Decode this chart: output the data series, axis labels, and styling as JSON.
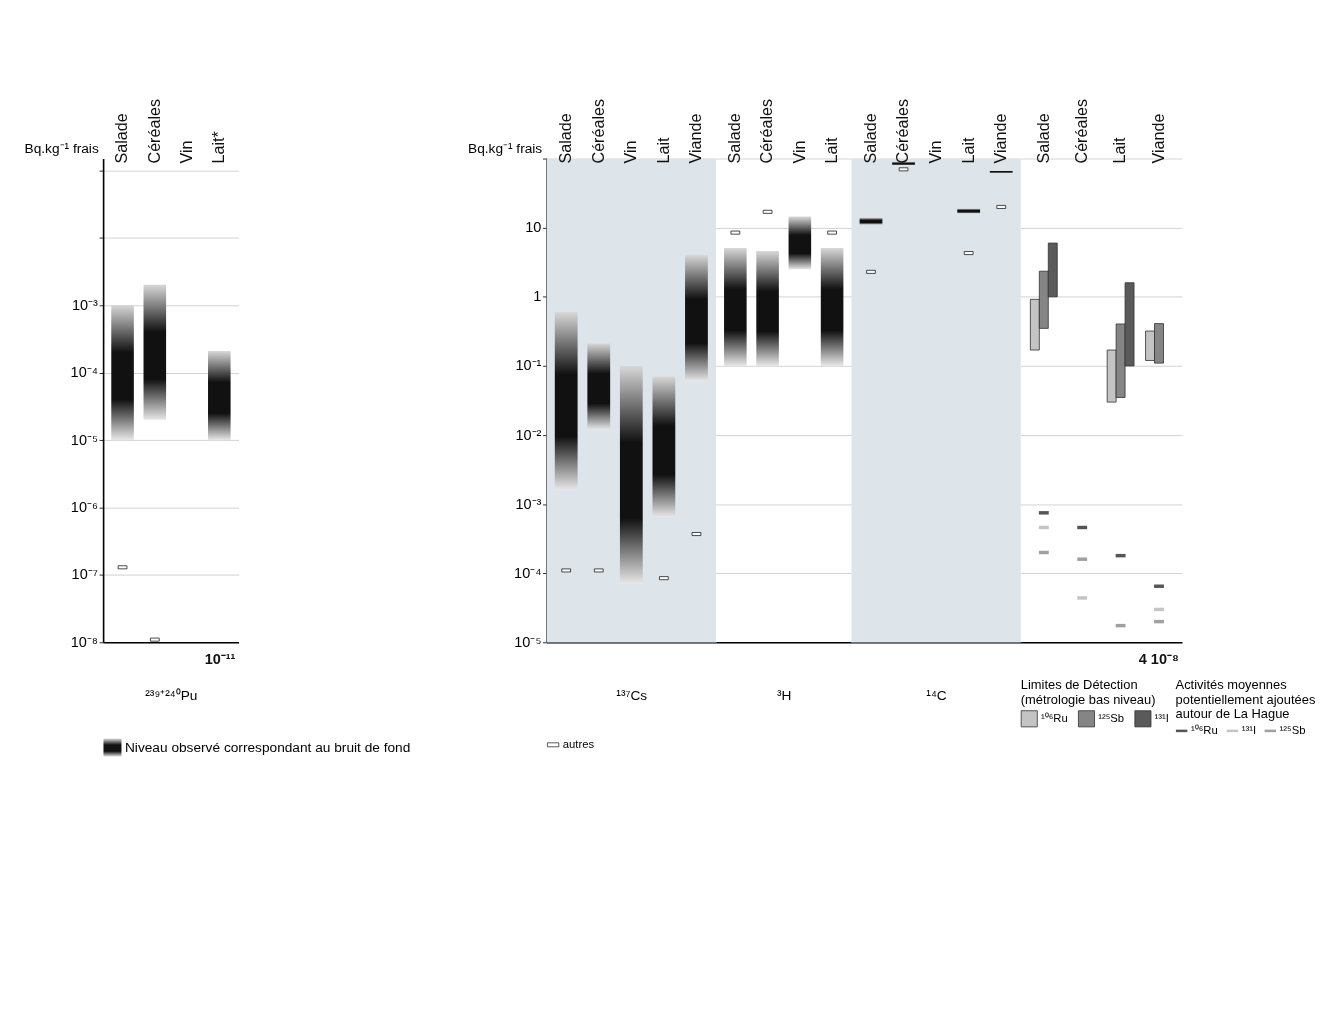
{
  "chart_data": [
    {
      "type": "bar",
      "categories": [
        "Salade",
        "Céréales",
        "Vin",
        "Lait*"
      ],
      "xlabel": "²³⁹⁺²⁴⁰Pu",
      "ylabel": "Bq.kg⁻¹ frais",
      "log": true,
      "grid": "y",
      "legend": "bottom",
      "ylim": [
        1e-08,
        0.15
      ],
      "yticks": [
        {
          "value": 0.1,
          "label": null
        },
        {
          "value": 0.01,
          "label": null
        },
        {
          "value": 0.001,
          "label": "10⁻³"
        },
        {
          "value": 0.0001,
          "label": "10⁻⁴"
        },
        {
          "value": 1e-05,
          "label": "10⁻⁵"
        },
        {
          "value": 1e-06,
          "label": "10⁻⁶"
        },
        {
          "value": 1e-07,
          "label": "10⁻⁷"
        },
        {
          "value": 1e-08,
          "label": "10⁻⁸"
        }
      ],
      "series": [
        {
          "name": "Niveau observé correspondant au bruit de fond",
          "color": "#111111",
          "base": [
            1e-05,
            2e-05,
            null,
            1e-05
          ],
          "values": [
            0.001,
            0.002,
            null,
            0.0002
          ]
        },
        {
          "type": "scatter",
          "marker": "square",
          "color": "#ffffff",
          "values": [
            1.3e-07,
            1.1e-08,
            null,
            null
          ]
        }
      ],
      "annotations": [
        "10⁻¹¹"
      ]
    },
    {
      "type": "bar",
      "categories": [
        "Salade",
        "Céréales",
        "Vin",
        "Lait",
        "Viande"
      ],
      "xlabel": "¹³⁷Cs",
      "ylabel": "Bq.kg⁻¹ frais",
      "log": true,
      "grid": "y",
      "legend": "bottom",
      "ylim": [
        1e-05,
        100
      ],
      "yticks": [
        {
          "value": 100,
          "label": null
        },
        10,
        1,
        {
          "value": 0.1,
          "label": "10⁻¹"
        },
        {
          "value": 0.01,
          "label": "10⁻²"
        },
        {
          "value": 0.001,
          "label": "10⁻³"
        },
        {
          "value": 0.0001,
          "label": "10⁻⁴"
        },
        {
          "value": 1e-05,
          "label": "10⁻⁵"
        }
      ],
      "bands": [
        {
          "axis": "y",
          "from": 1e-05,
          "to": 100,
          "color": "#dde5ea"
        }
      ],
      "series": [
        {
          "color": "#111111",
          "base": [
            0.0016,
            0.012,
            7e-05,
            0.00065,
            0.06
          ],
          "values": [
            0.6,
            0.2,
            0.1,
            0.07,
            4
          ]
        },
        {
          "type": "scatter",
          "marker": "square",
          "name": "autres",
          "color": "#ffffff",
          "values": [
            0.00011,
            0.00011,
            null,
            8.5e-05,
            0.00037
          ]
        }
      ]
    },
    {
      "type": "bar",
      "categories": [
        "Salade",
        "Céréales",
        "Vin",
        "Lait"
      ],
      "xlabel": "³H",
      "log": true,
      "grid": "y",
      "tick_labels": "x",
      "ylim": [
        1e-05,
        100
      ],
      "yticks": [
        100,
        10,
        1,
        0.1,
        0.01,
        0.001,
        0.0001,
        1e-05
      ],
      "series": [
        {
          "color": "#111111",
          "base": [
            0.1,
            0.1,
            2.5,
            0.1
          ],
          "values": [
            5,
            4.5,
            12,
            5
          ]
        },
        {
          "type": "scatter",
          "marker": "square",
          "color": "#ffffff",
          "values": [
            8.5,
            17,
            null,
            8.5
          ]
        }
      ]
    },
    {
      "type": "bar",
      "categories": [
        "Salade",
        "Céréales",
        "Vin",
        "Lait",
        "Viande"
      ],
      "xlabel": "¹⁴C",
      "log": true,
      "grid": "y",
      "tick_labels": "x",
      "ylim": [
        1e-05,
        100
      ],
      "yticks": [
        100,
        10,
        1,
        0.1,
        0.01,
        0.001,
        0.0001,
        1e-05
      ],
      "bands": [
        {
          "axis": "y",
          "from": 1e-05,
          "to": 100,
          "color": "#dde5ea"
        }
      ],
      "series": [
        {
          "color": "#111111",
          "base": [
            11,
            80,
            null,
            16,
            62
          ],
          "values": [
            3,
            10,
            null,
            3,
            5
          ]
        },
        {
          "type": "scatter",
          "marker": "square",
          "color": "#ffffff",
          "values": [
            2.3,
            70,
            null,
            4.3,
            20
          ]
        }
      ]
    },
    {
      "type": "bar",
      "categories": [
        "Salade",
        "Céréales",
        "Lait",
        "Viande"
      ],
      "log": true,
      "grid": "y",
      "tick_labels": "x",
      "legend": "bottom",
      "legend_title": "Limites de Détection (métrologie bas niveau)",
      "ylim": [
        1e-05,
        100
      ],
      "yticks": [
        100,
        10,
        1,
        0.1,
        0.01,
        0.001,
        0.0001,
        1e-05
      ],
      "series": [
        {
          "name": "¹⁰⁶Ru",
          "color": "#c4c4c4",
          "base": [
            0.17,
            null,
            0.03,
            0.12
          ],
          "values": [
            0.75,
            null,
            0.14,
            0.2
          ]
        },
        {
          "name": "¹²⁵Sb",
          "color": "#858585",
          "base": [
            0.35,
            null,
            0.035,
            0.11
          ],
          "values": [
            2,
            null,
            0.37,
            0.3
          ]
        },
        {
          "name": "¹³¹I",
          "color": "#5a5a5a",
          "base": [
            1,
            null,
            0.1,
            null
          ],
          "values": [
            5,
            null,
            1.5,
            null
          ]
        },
        {
          "type": "scatter",
          "name": "¹⁰⁶Ru",
          "color": "#555555",
          "values": [
            0.00075,
            0.00046,
            0.00018,
            6.5e-05
          ]
        },
        {
          "type": "scatter",
          "name": "¹³¹I",
          "color": "#c4c4c4",
          "values": [
            0.00046,
            4.4e-05,
            null,
            3e-05
          ]
        },
        {
          "type": "scatter",
          "name": "¹²⁵Sb",
          "color": "#a0a0a0",
          "values": [
            0.0002,
            0.00016,
            1.75e-05,
            2e-05
          ]
        }
      ],
      "annotations": [
        "4 10⁻⁸",
        "Activités moyennes potentiellement ajoutées autour de La Hague"
      ]
    }
  ]
}
